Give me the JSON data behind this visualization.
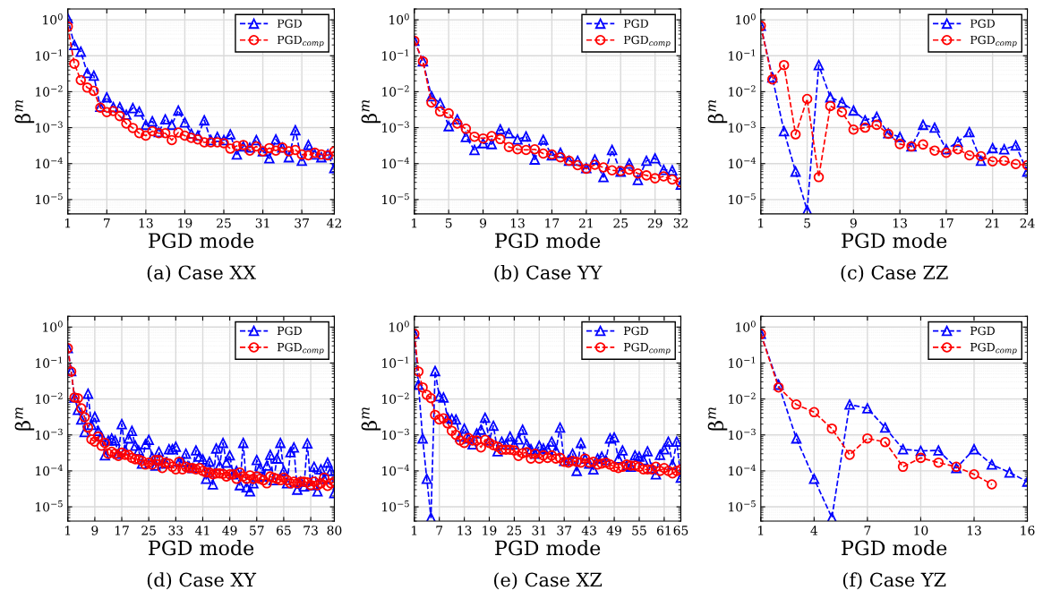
{
  "chart_data": [
    {
      "type": "line",
      "title": "(a) Case XX",
      "xlabel": "PGD mode",
      "ylabel": "β$^{m}$",
      "log": "y",
      "grid": true,
      "legend": "top right",
      "line_style": "dashed",
      "xlim": [
        1,
        42
      ],
      "xticks": [
        1,
        7,
        13,
        19,
        25,
        31,
        37,
        42
      ],
      "ylim": [
        4e-06,
        2
      ],
      "yticks": [
        {
          "value": 1e-05,
          "label": "10$^{−5}$"
        },
        {
          "value": 0.0001,
          "label": "10$^{−4}$"
        },
        {
          "value": 0.001,
          "label": "10$^{−3}$"
        },
        {
          "value": 0.01,
          "label": "10$^{−2}$"
        },
        {
          "value": 0.1,
          "label": "10$^{−1}$"
        },
        {
          "value": 1,
          "label": "10$^{0}$"
        }
      ],
      "series": [
        {
          "name": "PGD",
          "color": "#0000ff",
          "marker": "triangle",
          "x": [
            1,
            2,
            3,
            4,
            5,
            6,
            7,
            8,
            9,
            10,
            11,
            12,
            13,
            14,
            15,
            16,
            17,
            18,
            19,
            20,
            21,
            22,
            23,
            24,
            25,
            26,
            27,
            28,
            29,
            30,
            31,
            32,
            33,
            34,
            35,
            36,
            37,
            38,
            39,
            40,
            41,
            42
          ],
          "values": [
            1.1,
            0.2,
            0.13,
            0.033,
            0.028,
            0.0038,
            0.007,
            0.0037,
            0.0037,
            0.0023,
            0.0035,
            0.0028,
            0.0012,
            0.0015,
            0.00075,
            0.0017,
            0.0012,
            0.003,
            0.0014,
            0.00068,
            0.0006,
            0.0016,
            0.00045,
            0.00055,
            0.00045,
            0.00065,
            0.00018,
            0.0003,
            0.00028,
            0.00045,
            0.00022,
            0.00014,
            0.00047,
            0.00028,
            0.00015,
            0.00085,
            0.00012,
            0.00033,
            0.00018,
            0.00015,
            0.00018,
            7.5e-05
          ]
        },
        {
          "name": "PGD$_{comp}$",
          "color": "#ff0000",
          "marker": "circle",
          "x": [
            1,
            2,
            3,
            4,
            5,
            6,
            7,
            8,
            9,
            10,
            11,
            12,
            13,
            14,
            15,
            16,
            17,
            18,
            19,
            20,
            21,
            22,
            23,
            24,
            25,
            26,
            27,
            28,
            29,
            30,
            31,
            32,
            33,
            34,
            35,
            36,
            37,
            38,
            39,
            40,
            41,
            42
          ],
          "values": [
            0.65,
            0.06,
            0.021,
            0.013,
            0.0105,
            0.0036,
            0.0027,
            0.0029,
            0.0021,
            0.0013,
            0.00098,
            0.0007,
            0.0006,
            0.0008,
            0.0007,
            0.0007,
            0.00045,
            0.00073,
            0.0006,
            0.00052,
            0.00047,
            0.00039,
            0.00039,
            0.00039,
            0.00037,
            0.00026,
            0.00031,
            0.00033,
            0.00023,
            0.0003,
            0.00022,
            0.00027,
            0.00023,
            0.00028,
            0.00022,
            0.00024,
            0.00018,
            0.00017,
            0.0002,
            0.00018,
            0.00017,
            0.00022
          ]
        }
      ]
    },
    {
      "type": "line",
      "title": "(b) Case YY",
      "xlabel": "PGD mode",
      "ylabel": "β$^{m}$",
      "log": "y",
      "grid": true,
      "legend": "top right",
      "line_style": "dashed",
      "xlim": [
        1,
        32
      ],
      "xticks": [
        1,
        5,
        9,
        13,
        17,
        21,
        25,
        29,
        32
      ],
      "ylim": [
        4e-06,
        2
      ],
      "yticks": [
        {
          "value": 1e-05,
          "label": "10$^{−5}$"
        },
        {
          "value": 0.0001,
          "label": "10$^{−4}$"
        },
        {
          "value": 0.001,
          "label": "10$^{−3}$"
        },
        {
          "value": 0.01,
          "label": "10$^{−2}$"
        },
        {
          "value": 0.1,
          "label": "10$^{−1}$"
        },
        {
          "value": 1,
          "label": "10$^{0}$"
        }
      ],
      "series": [
        {
          "name": "PGD",
          "color": "#0000ff",
          "marker": "triangle",
          "x": [
            1,
            2,
            3,
            4,
            5,
            6,
            7,
            8,
            9,
            10,
            11,
            12,
            13,
            14,
            15,
            16,
            17,
            18,
            19,
            20,
            21,
            22,
            23,
            24,
            25,
            26,
            27,
            28,
            29,
            30,
            31,
            32
          ],
          "values": [
            0.26,
            0.07,
            0.0075,
            0.0048,
            0.0011,
            0.0017,
            0.00055,
            0.00024,
            0.00037,
            0.00035,
            0.0009,
            0.0007,
            0.00047,
            0.00057,
            0.00013,
            0.00046,
            0.00017,
            0.0002,
            0.00012,
            0.00012,
            7.5e-05,
            0.00013,
            4.2e-05,
            0.00024,
            6e-05,
            0.0001,
            3.5e-05,
            0.00012,
            0.00014,
            6.7e-05,
            6.5e-05,
            2.6e-05
          ]
        },
        {
          "name": "PGD$_{comp}$",
          "color": "#ff0000",
          "marker": "circle",
          "x": [
            1,
            2,
            3,
            4,
            5,
            6,
            7,
            8,
            9,
            10,
            11,
            12,
            13,
            14,
            15,
            16,
            17,
            18,
            19,
            20,
            21,
            22,
            23,
            24,
            25,
            26,
            27,
            28,
            29,
            30,
            31,
            32
          ],
          "values": [
            0.26,
            0.07,
            0.005,
            0.0028,
            0.0025,
            0.0013,
            0.00093,
            0.00056,
            0.0005,
            0.00058,
            0.00048,
            0.00029,
            0.00025,
            0.00024,
            0.00025,
            0.00019,
            0.00018,
            0.00015,
            0.00012,
            9e-05,
            7.2e-05,
            9.3e-05,
            7.8e-05,
            6.5e-05,
            6.2e-05,
            6.8e-05,
            5.3e-05,
            4.7e-05,
            3.9e-05,
            4.4e-05,
            3.6e-05,
            3e-05
          ]
        }
      ]
    },
    {
      "type": "line",
      "title": "(c) Case ZZ",
      "xlabel": "PGD mode",
      "ylabel": "β$^{m}$",
      "log": "y",
      "grid": true,
      "legend": "top right",
      "line_style": "dashed",
      "xlim": [
        1,
        24
      ],
      "xticks": [
        1,
        5,
        9,
        13,
        17,
        21,
        24
      ],
      "ylim": [
        4e-06,
        2
      ],
      "yticks": [
        {
          "value": 1e-05,
          "label": "10$^{−5}$"
        },
        {
          "value": 0.0001,
          "label": "10$^{−4}$"
        },
        {
          "value": 0.001,
          "label": "10$^{−3}$"
        },
        {
          "value": 0.01,
          "label": "10$^{−2}$"
        },
        {
          "value": 0.1,
          "label": "10$^{−1}$"
        },
        {
          "value": 1,
          "label": "10$^{0}$"
        }
      ],
      "series": [
        {
          "name": "PGD",
          "color": "#0000ff",
          "marker": "triangle",
          "x": [
            1,
            2,
            3,
            4,
            5,
            6,
            7,
            8,
            9,
            10,
            11,
            12,
            13,
            14,
            15,
            16,
            17,
            18,
            19,
            20,
            21,
            22,
            23,
            24
          ],
          "values": [
            0.68,
            0.025,
            0.0008,
            6e-05,
            5e-06,
            0.055,
            0.007,
            0.005,
            0.003,
            0.0016,
            0.002,
            0.0007,
            0.00055,
            0.0003,
            0.0012,
            0.001,
            0.00025,
            0.0004,
            0.00075,
            0.00012,
            0.00027,
            0.00025,
            0.00032,
            6e-05
          ]
        },
        {
          "name": "PGD$_{comp}$",
          "color": "#ff0000",
          "marker": "circle",
          "x": [
            1,
            2,
            3,
            4,
            5,
            6,
            7,
            8,
            9,
            10,
            11,
            12,
            13,
            14,
            15,
            16,
            17,
            18,
            19,
            20,
            21,
            22,
            23,
            24
          ],
          "values": [
            0.68,
            0.022,
            0.055,
            0.00065,
            0.0063,
            4.2e-05,
            0.004,
            0.0027,
            0.00088,
            0.001,
            0.0012,
            0.00067,
            0.00035,
            0.0003,
            0.00034,
            0.00023,
            0.0002,
            0.00025,
            0.00017,
            0.00016,
            0.000115,
            0.00012,
            9.7e-05,
            9e-05
          ]
        }
      ]
    },
    {
      "type": "line",
      "title": "(d) Case XY",
      "xlabel": "PGD mode",
      "ylabel": "β$^{m}$",
      "log": "y",
      "grid": true,
      "legend": "top right",
      "line_style": "dashed",
      "xlim": [
        1,
        80
      ],
      "xticks": [
        1,
        9,
        17,
        25,
        33,
        41,
        49,
        57,
        65,
        73,
        80
      ],
      "ylim": [
        4e-06,
        2
      ],
      "yticks": [
        {
          "value": 1e-05,
          "label": "10$^{−5}$"
        },
        {
          "value": 0.0001,
          "label": "10$^{−4}$"
        },
        {
          "value": 0.001,
          "label": "10$^{−3}$"
        },
        {
          "value": 0.01,
          "label": "10$^{−2}$"
        },
        {
          "value": 0.1,
          "label": "10$^{−1}$"
        },
        {
          "value": 1,
          "label": "10$^{0}$"
        }
      ],
      "series": [
        {
          "name": "PGD",
          "color": "#0000ff",
          "marker": "triangle",
          "x": [
            1,
            2,
            3,
            4,
            5,
            6,
            7,
            8,
            9,
            10,
            11,
            12,
            13,
            14,
            15,
            16,
            17,
            18,
            19,
            20,
            21,
            22,
            23,
            24,
            25,
            26,
            27,
            28,
            29,
            30,
            31,
            32,
            33,
            34,
            35,
            36,
            37,
            38,
            39,
            40,
            41,
            42,
            43,
            44,
            45,
            46,
            47,
            48,
            49,
            50,
            51,
            52,
            53,
            54,
            55,
            56,
            57,
            58,
            59,
            60,
            61,
            62,
            63,
            64,
            65,
            66,
            67,
            68,
            69,
            70,
            71,
            72,
            73,
            74,
            75,
            76,
            77,
            78,
            79,
            80
          ],
          "values": [
            0.26,
            0.06,
            0.011,
            0.005,
            0.0027,
            0.0012,
            0.014,
            0.0019,
            0.0032,
            0.0013,
            0.0009,
            0.00027,
            0.0007,
            0.0008,
            0.0007,
            0.0003,
            0.002,
            0.00038,
            0.0008,
            0.0013,
            0.0005,
            0.00037,
            0.00016,
            0.00055,
            0.00073,
            0.00024,
            0.00014,
            0.00034,
            0.00016,
            0.00017,
            0.0004,
            0.0004,
            0.00047,
            0.00018,
            0.00018,
            0.0003,
            0.00013,
            0.00012,
            0.00037,
            0.00025,
            0.00021,
            6e-05,
            0.00018,
            4.2e-05,
            0.00042,
            0.00014,
            0.0006,
            0.00017,
            0.00027,
            8e-05,
            0.0001,
            4e-05,
            0.0006,
            3.5e-05,
            2.7e-05,
            4.5e-05,
            0.0002,
            0.00012,
            7e-05,
            0.00014,
            0.00028,
            5.5e-05,
            0.00022,
            0.0006,
            0.0001,
            4.5e-05,
            0.00033,
            0.00045,
            3e-05,
            5e-05,
            3.7e-05,
            0.00058,
            4e-05,
            0.00013,
            2.7e-05,
            0.00011,
            6e-05,
            0.00017,
            0.0001,
            2.4e-05
          ]
        },
        {
          "name": "PGD$_{comp}$",
          "color": "#ff0000",
          "marker": "circle",
          "x": [
            1,
            2,
            3,
            4,
            5,
            6,
            7,
            8,
            9,
            10,
            11,
            12,
            13,
            14,
            15,
            16,
            17,
            18,
            19,
            20,
            21,
            22,
            23,
            24,
            25,
            26,
            27,
            28,
            29,
            30,
            31,
            32,
            33,
            34,
            35,
            36,
            37,
            38,
            39,
            40,
            41,
            42,
            43,
            44,
            45,
            46,
            47,
            48,
            49,
            50,
            51,
            52,
            53,
            54,
            55,
            56,
            57,
            58,
            59,
            60,
            61,
            62,
            63,
            64,
            65,
            66,
            67,
            68,
            69,
            70,
            71,
            72,
            73,
            74,
            75,
            76,
            77,
            78,
            79,
            80
          ],
          "values": [
            0.26,
            0.058,
            0.011,
            0.0105,
            0.0055,
            0.0031,
            0.0016,
            0.00075,
            0.00065,
            0.0009,
            0.0005,
            0.0006,
            0.0003,
            0.00034,
            0.0003,
            0.00026,
            0.00032,
            0.00028,
            0.00028,
            0.00023,
            0.00021,
            0.00021,
            0.00019,
            0.00015,
            0.00017,
            0.00015,
            0.0002,
            0.0002,
            0.00012,
            0.00017,
            0.00016,
            0.00013,
            0.00011,
            0.00018,
            0.00011,
            0.00013,
            0.00012,
            0.00012,
            0.00011,
            0.00012,
            0.0001,
            9e-05,
            9e-05,
            8e-05,
            8.5e-05,
            8.5e-05,
            8.3e-05,
            7e-05,
            8e-05,
            8e-05,
            6e-05,
            9e-05,
            7e-05,
            6e-05,
            7.5e-05,
            6e-05,
            7e-05,
            6e-05,
            5.5e-05,
            4.5e-05,
            7e-05,
            6.5e-05,
            6e-05,
            5.5e-05,
            6.5e-05,
            5.5e-05,
            4.5e-05,
            5e-05,
            4.5e-05,
            5e-05,
            5e-05,
            4.8e-05,
            4e-05,
            5e-05,
            4e-05,
            4.5e-05,
            6.5e-05,
            3.8e-05,
            4.5e-05,
            5e-05
          ]
        }
      ]
    },
    {
      "type": "line",
      "title": "(e) Case XZ",
      "xlabel": "PGD mode",
      "ylabel": "β$^{m}$",
      "log": "y",
      "grid": true,
      "legend": "top right",
      "line_style": "dashed",
      "xlim": [
        1,
        65
      ],
      "xticks": [
        1,
        7,
        13,
        19,
        25,
        31,
        37,
        43,
        49,
        55,
        61,
        65
      ],
      "ylim": [
        4e-06,
        2
      ],
      "yticks": [
        {
          "value": 1e-05,
          "label": "10$^{−5}$"
        },
        {
          "value": 0.0001,
          "label": "10$^{−4}$"
        },
        {
          "value": 0.001,
          "label": "10$^{−3}$"
        },
        {
          "value": 0.01,
          "label": "10$^{−2}$"
        },
        {
          "value": 0.1,
          "label": "10$^{−1}$"
        },
        {
          "value": 1,
          "label": "10$^{0}$"
        }
      ],
      "series": [
        {
          "name": "PGD",
          "color": "#0000ff",
          "marker": "triangle",
          "x": [
            1,
            2,
            3,
            4,
            5,
            6,
            7,
            8,
            9,
            10,
            11,
            12,
            13,
            14,
            15,
            16,
            17,
            18,
            19,
            20,
            21,
            22,
            23,
            24,
            25,
            26,
            27,
            28,
            29,
            30,
            31,
            32,
            33,
            34,
            35,
            36,
            37,
            38,
            39,
            40,
            41,
            42,
            43,
            44,
            45,
            46,
            47,
            48,
            49,
            50,
            51,
            52,
            53,
            54,
            55,
            56,
            57,
            58,
            59,
            60,
            61,
            62,
            63,
            64,
            65
          ],
          "values": [
            0.65,
            0.025,
            0.0008,
            6e-05,
            5e-06,
            0.06,
            0.012,
            0.011,
            0.003,
            0.0028,
            0.0027,
            0.0009,
            0.0015,
            0.0008,
            0.00055,
            0.0011,
            0.0014,
            0.003,
            0.0007,
            0.0018,
            0.00035,
            0.00065,
            0.00055,
            0.0009,
            0.00055,
            0.00075,
            0.0014,
            0.00055,
            0.0004,
            0.0003,
            0.0005,
            0.00042,
            0.0004,
            0.00065,
            0.00037,
            0.0016,
            0.00019,
            0.0002,
            0.0003,
            0.0001,
            0.0006,
            0.00022,
            0.00016,
            0.00011,
            0.00022,
            0.00025,
            0.0002,
            0.0008,
            0.00085,
            0.00022,
            0.00037,
            0.00014,
            0.00013,
            0.00027,
            0.00025,
            0.0002,
            0.00035,
            0.00012,
            8e-05,
            0.00028,
            0.0004,
            0.00065,
            0.00015,
            0.00065,
            6.5e-05
          ]
        },
        {
          "name": "PGD$_{comp}$",
          "color": "#ff0000",
          "marker": "circle",
          "x": [
            1,
            2,
            3,
            4,
            5,
            6,
            7,
            8,
            9,
            10,
            11,
            12,
            13,
            14,
            15,
            16,
            17,
            18,
            19,
            20,
            21,
            22,
            23,
            24,
            25,
            26,
            27,
            28,
            29,
            30,
            31,
            32,
            33,
            34,
            35,
            36,
            37,
            38,
            39,
            40,
            41,
            42,
            43,
            44,
            45,
            46,
            47,
            48,
            49,
            50,
            51,
            52,
            53,
            54,
            55,
            56,
            57,
            58,
            59,
            60,
            61,
            62,
            63,
            64,
            65
          ],
          "values": [
            0.65,
            0.058,
            0.021,
            0.013,
            0.0105,
            0.0036,
            0.0027,
            0.0029,
            0.0021,
            0.0013,
            0.001,
            0.0007,
            0.0006,
            0.00082,
            0.0007,
            0.0007,
            0.00045,
            0.00073,
            0.0006,
            0.00052,
            0.00047,
            0.00039,
            0.00039,
            0.00039,
            0.00037,
            0.00026,
            0.00031,
            0.00033,
            0.00022,
            0.0003,
            0.00022,
            0.00027,
            0.00023,
            0.00027,
            0.00022,
            0.00023,
            0.00018,
            0.00017,
            0.00019,
            0.00018,
            0.00017,
            0.00022,
            0.00017,
            0.00018,
            0.00015,
            0.00016,
            0.00017,
            0.00015,
            0.00013,
            0.00012,
            0.00013,
            0.00015,
            0.00014,
            0.00014,
            0.00013,
            0.00011,
            0.00011,
            0.00011,
            0.00013,
            0.0001,
            0.00012,
            0.0001,
            8.5e-05,
            0.0001,
            0.00011
          ]
        }
      ]
    },
    {
      "type": "line",
      "title": "(f) Case YZ",
      "xlabel": "PGD mode",
      "ylabel": "β$^{m}$",
      "log": "y",
      "grid": true,
      "legend": "top right",
      "line_style": "dashed",
      "xlim": [
        1,
        16
      ],
      "xticks": [
        1,
        4,
        7,
        10,
        13,
        16
      ],
      "ylim": [
        4e-06,
        2
      ],
      "yticks": [
        {
          "value": 1e-05,
          "label": "10$^{−5}$"
        },
        {
          "value": 0.0001,
          "label": "10$^{−4}$"
        },
        {
          "value": 0.001,
          "label": "10$^{−3}$"
        },
        {
          "value": 0.01,
          "label": "10$^{−2}$"
        },
        {
          "value": 0.1,
          "label": "10$^{−1}$"
        },
        {
          "value": 1,
          "label": "10$^{0}$"
        }
      ],
      "series": [
        {
          "name": "PGD",
          "color": "#0000ff",
          "marker": "triangle",
          "x": [
            1,
            2,
            3,
            4,
            5,
            6,
            7,
            8,
            9,
            10,
            11,
            12,
            13,
            14,
            15,
            16
          ],
          "values": [
            0.65,
            0.025,
            0.0008,
            6e-05,
            5e-06,
            0.007,
            0.0055,
            0.0016,
            0.0004,
            0.00036,
            0.00037,
            0.00012,
            0.0004,
            0.00015,
            9e-05,
            5e-05
          ]
        },
        {
          "name": "PGD$_{comp}$",
          "color": "#ff0000",
          "marker": "circle",
          "x": [
            1,
            2,
            3,
            4,
            5,
            6,
            7,
            8,
            9,
            10,
            11,
            12,
            13,
            14
          ],
          "values": [
            0.65,
            0.021,
            0.007,
            0.0043,
            0.0015,
            0.00028,
            0.0008,
            0.00063,
            0.00013,
            0.00023,
            0.00017,
            0.00013,
            8e-05,
            4.2e-05
          ]
        }
      ]
    }
  ]
}
